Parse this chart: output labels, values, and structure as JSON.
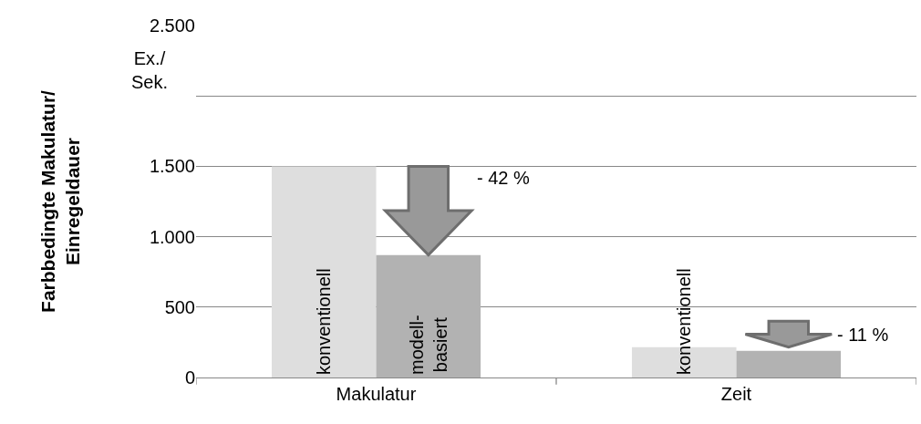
{
  "chart_data": {
    "type": "bar",
    "ylabel": "Farbbedingte Makulatur/\nEinregeldauer",
    "categories": [
      "Makulatur",
      "Zeit"
    ],
    "series": [
      {
        "color": "#dedede",
        "values": [
          1500,
          215
        ],
        "value_labels": [
          "konventionell",
          "konventionell"
        ]
      },
      {
        "color": "#b2b2b2",
        "values": [
          870,
          190
        ],
        "value_labels": [
          "modell-\nbasiert",
          null
        ]
      }
    ],
    "ylim": [
      0,
      2500
    ],
    "yticks": [
      {
        "value": 0,
        "label": "0"
      },
      {
        "value": 500,
        "label": "500"
      },
      {
        "value": 1000,
        "label": "1.000"
      },
      {
        "value": 1500,
        "label": "1.500"
      },
      {
        "value": 2000,
        "label": null
      },
      {
        "value": 2500,
        "label": "2.500"
      }
    ],
    "grid": "y",
    "legend": false,
    "annotations": [
      "Ex./\nSek.",
      "- 42 %",
      "- 11 %"
    ]
  }
}
